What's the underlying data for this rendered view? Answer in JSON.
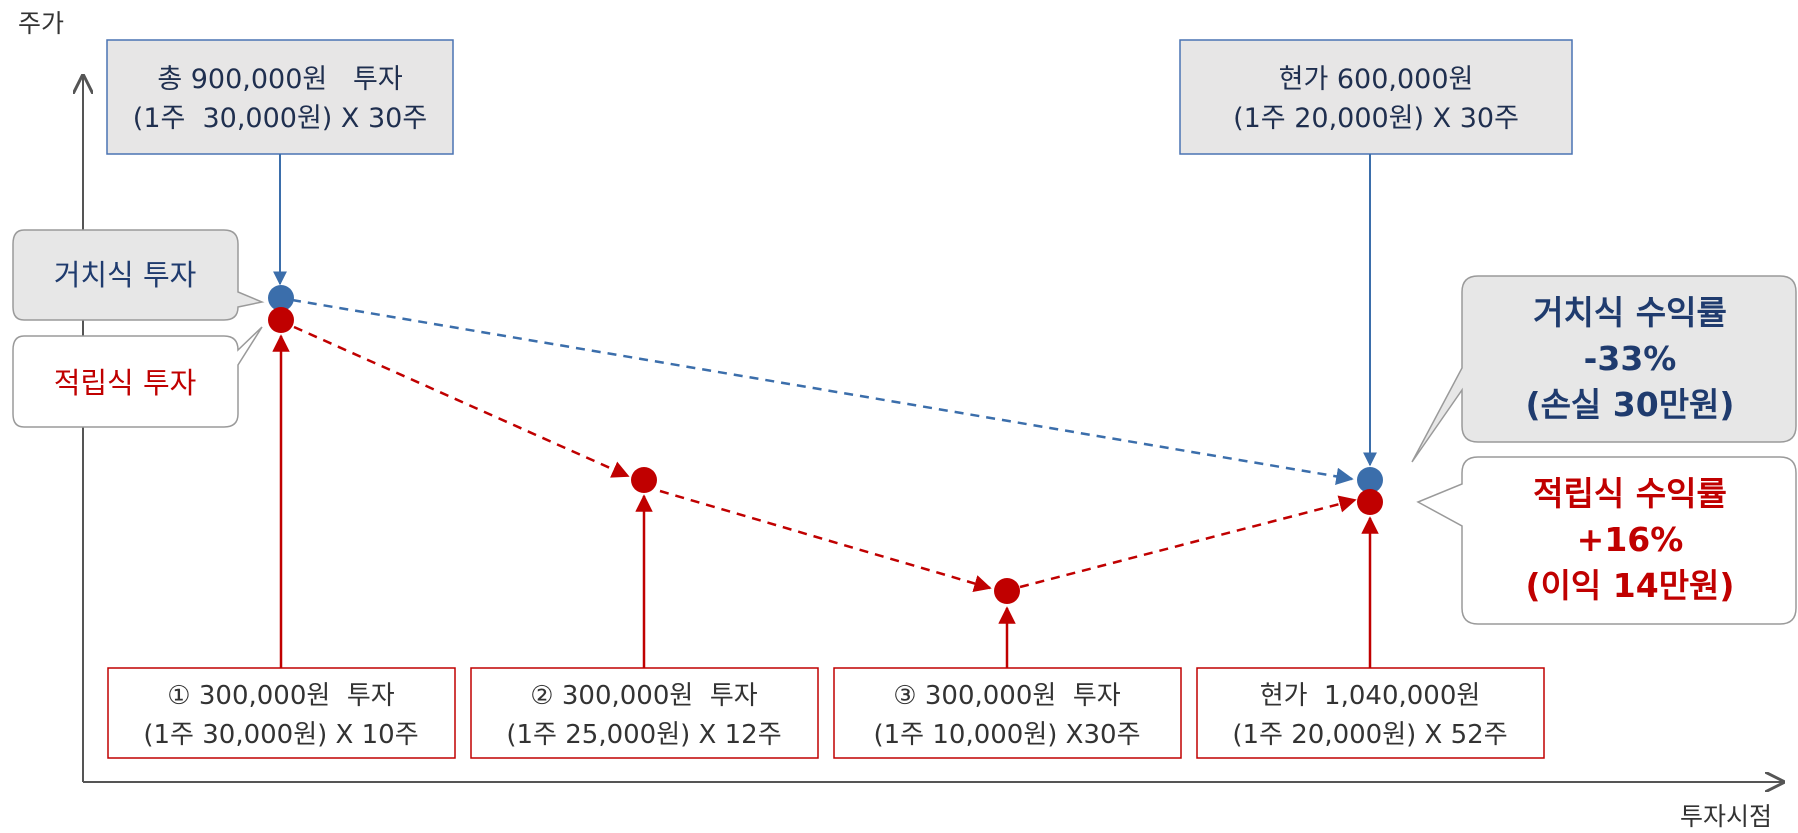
{
  "axes": {
    "y_label": "주가",
    "x_label": "투자시점"
  },
  "lump_sum": {
    "label": "거치식 투자",
    "color": "#3b6eab",
    "purchase_box": [
      "총 900,000원   투자",
      "(1주  30,000원) X 30주"
    ],
    "current_box": [
      "현가 600,000원",
      "(1주 20,000원) X 30주"
    ],
    "result": [
      "거치식 수익률",
      "-33%",
      "(손실 30만원)"
    ],
    "result_color": "#1f3b6e"
  },
  "installment": {
    "label": "적립식 투자",
    "color": "#c00000",
    "steps": [
      {
        "lines": [
          "① 300,000원  투자",
          "(1주 30,000원) X 10주"
        ]
      },
      {
        "lines": [
          "② 300,000원  투자",
          "(1주 25,000원) X 12주"
        ]
      },
      {
        "lines": [
          "③ 300,000원  투자",
          "(1주 10,000원) X30주"
        ]
      },
      {
        "lines": [
          "현가  1,040,000원",
          "(1주 20,000원) X 52주"
        ]
      }
    ],
    "result": [
      "적립식 수익률",
      "+16%",
      "(이익 14만원)"
    ],
    "result_color": "#c00000"
  },
  "colors": {
    "axis": "#555555",
    "callout_gray_fill": "#e7e7e7",
    "callout_border": "#9a9a9a",
    "info_box_fill": "#e7e6e6",
    "info_box_border": "#4a73b3",
    "step_box_border": "#c00000",
    "dark_text": "#1f2f4f"
  }
}
